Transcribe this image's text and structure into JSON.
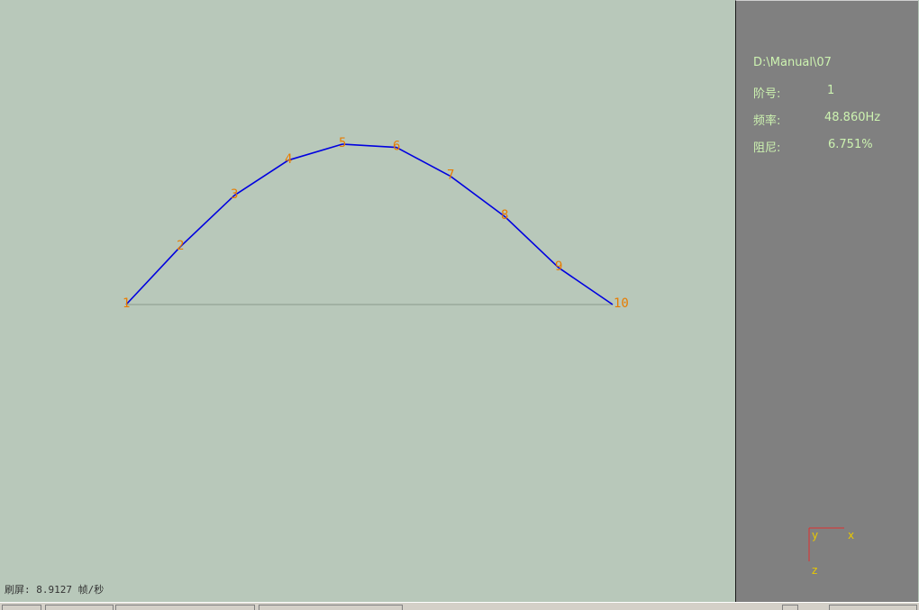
{
  "colors": {
    "viewport_bg": "#b8c8ba",
    "panel_bg": "#808080",
    "mode_line": "#0000e0",
    "baseline": "#8a9a8c",
    "node_label": "#e87c00",
    "panel_text": "#ccf2b0",
    "axis_x_line": "#e03030",
    "axis_label": "#e8c800"
  },
  "viewport": {
    "fps_label": "刷屏:",
    "fps_value": "8.9127",
    "fps_unit": "帧/秒"
  },
  "panel": {
    "path": "D:\\Manual\\07",
    "order_label": "阶号:",
    "order_value": "1",
    "frequency_label": "频率:",
    "frequency_value": "48.860Hz",
    "damping_label": "阻尼:",
    "damping_value": "6.751%"
  },
  "axis_triad": {
    "x_label": "x",
    "y_label": "y",
    "z_label": "z"
  },
  "chart_data": {
    "type": "line",
    "x": [
      1,
      2,
      3,
      4,
      5,
      6,
      7,
      8,
      9,
      10
    ],
    "node_labels": [
      "1",
      "2",
      "3",
      "4",
      "5",
      "6",
      "7",
      "8",
      "9",
      "10"
    ],
    "values": [
      0,
      0.36,
      0.68,
      0.9,
      1.0,
      0.98,
      0.8,
      0.55,
      0.23,
      0
    ],
    "baseline": 0,
    "ylim": [
      0,
      1
    ]
  }
}
